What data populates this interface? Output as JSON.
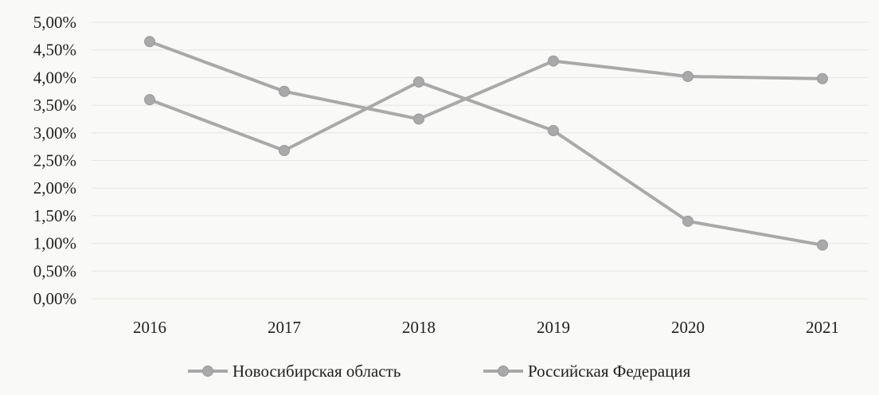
{
  "chart_data": {
    "type": "line",
    "x": [
      "2016",
      "2017",
      "2018",
      "2019",
      "2020",
      "2021"
    ],
    "y_ticks": [
      "0,00%",
      "0,50%",
      "1,00%",
      "1,50%",
      "2,00%",
      "2,50%",
      "3,00%",
      "3,50%",
      "4,00%",
      "4,50%",
      "5,00%"
    ],
    "ylim": [
      0,
      5
    ],
    "grid": true,
    "legend_position": "bottom",
    "series": [
      {
        "name": "Новосибирская область",
        "values": [
          4.65,
          3.75,
          3.25,
          4.3,
          4.02,
          3.98
        ],
        "color": "#a9a9a9"
      },
      {
        "name": "Российская Федерация",
        "values": [
          3.6,
          2.68,
          3.92,
          3.04,
          1.4,
          0.97
        ],
        "color": "#a9a9a9"
      }
    ]
  }
}
